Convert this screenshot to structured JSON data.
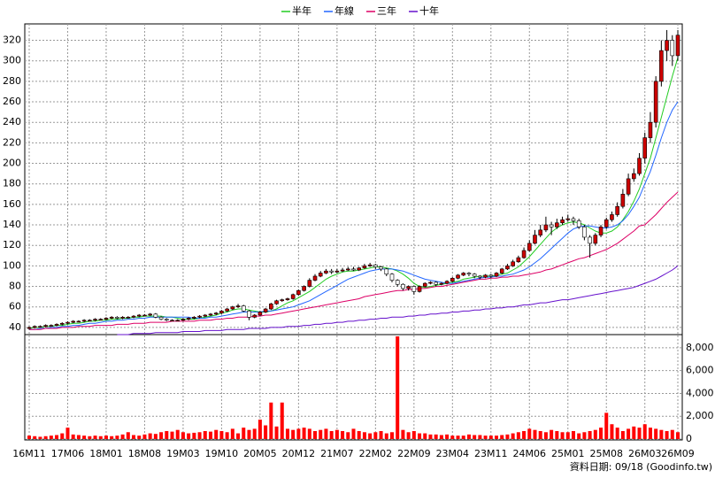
{
  "chart_data": {
    "type": "candlestick",
    "footer": "資料日期: 09/18  (Goodinfo.tw)",
    "grid": true,
    "up_color": "#cc0000",
    "down_color": "#ffffff",
    "categories": [
      "16M11",
      null,
      null,
      null,
      null,
      null,
      null,
      "17M06",
      null,
      null,
      null,
      null,
      null,
      null,
      "18M01",
      null,
      null,
      null,
      null,
      null,
      null,
      "18M08",
      null,
      null,
      null,
      null,
      null,
      null,
      "19M03",
      null,
      null,
      null,
      null,
      null,
      null,
      "19M10",
      null,
      null,
      null,
      null,
      null,
      null,
      "20M05",
      null,
      null,
      null,
      null,
      null,
      null,
      "20M12",
      null,
      null,
      null,
      null,
      null,
      null,
      "21M07",
      null,
      null,
      null,
      null,
      null,
      null,
      "22M02",
      null,
      null,
      null,
      null,
      null,
      null,
      "22M09",
      null,
      null,
      null,
      null,
      null,
      null,
      "23M04",
      null,
      null,
      null,
      null,
      null,
      null,
      "23M11",
      null,
      null,
      null,
      null,
      null,
      null,
      "24M06",
      null,
      null,
      null,
      null,
      null,
      null,
      "25M01",
      null,
      null,
      null,
      null,
      null,
      null,
      "25M08",
      null,
      null,
      null,
      null,
      null,
      null,
      "26M03",
      null,
      null,
      null,
      null,
      null,
      "26M09"
    ],
    "open": [
      39,
      40,
      41,
      41,
      42,
      42,
      43,
      44,
      45,
      46,
      46,
      47,
      47,
      48,
      48,
      49,
      50,
      49,
      50,
      50,
      51,
      52,
      52,
      53,
      50,
      48,
      47,
      47,
      47,
      48,
      49,
      50,
      51,
      52,
      53,
      54,
      56,
      58,
      60,
      61,
      56,
      50,
      52,
      55,
      58,
      63,
      66,
      67,
      68,
      72,
      76,
      80,
      86,
      90,
      93,
      95,
      94,
      95,
      96,
      97,
      96,
      98,
      100,
      101,
      99,
      97,
      92,
      86,
      82,
      78,
      80,
      75,
      80,
      83,
      84,
      82,
      83,
      85,
      88,
      91,
      93,
      92,
      90,
      89,
      91,
      90,
      93,
      97,
      100,
      104,
      108,
      115,
      122,
      130,
      135,
      140,
      138,
      142,
      145,
      146,
      144,
      138,
      128,
      122,
      130,
      138,
      145,
      150,
      158,
      170,
      185,
      190,
      205,
      225,
      240,
      280,
      310,
      320,
      305
    ],
    "high": [
      41,
      42,
      42,
      43,
      43,
      44,
      45,
      46,
      47,
      47,
      48,
      48,
      49,
      49,
      50,
      51,
      51,
      51,
      51,
      52,
      53,
      53,
      54,
      54,
      51,
      49,
      48,
      48,
      49,
      50,
      51,
      52,
      53,
      54,
      55,
      57,
      59,
      61,
      63,
      62,
      57,
      53,
      56,
      59,
      64,
      67,
      68,
      69,
      73,
      77,
      81,
      88,
      92,
      95,
      97,
      97,
      97,
      98,
      99,
      99,
      99,
      102,
      103,
      102,
      100,
      98,
      93,
      87,
      83,
      81,
      81,
      81,
      84,
      85,
      85,
      84,
      86,
      89,
      92,
      94,
      94,
      93,
      91,
      92,
      92,
      94,
      98,
      102,
      106,
      110,
      118,
      125,
      135,
      140,
      148,
      143,
      146,
      148,
      150,
      148,
      146,
      140,
      130,
      132,
      140,
      147,
      153,
      162,
      175,
      190,
      195,
      210,
      230,
      250,
      285,
      320,
      330,
      325,
      330
    ],
    "low": [
      38,
      39,
      40,
      40,
      41,
      41,
      42,
      43,
      44,
      45,
      45,
      46,
      46,
      47,
      47,
      48,
      48,
      48,
      49,
      49,
      50,
      51,
      51,
      49,
      47,
      46,
      46,
      46,
      46,
      47,
      48,
      49,
      50,
      51,
      52,
      53,
      55,
      57,
      59,
      55,
      47,
      49,
      51,
      54,
      57,
      62,
      65,
      66,
      67,
      71,
      75,
      79,
      85,
      89,
      92,
      92,
      93,
      94,
      95,
      95,
      95,
      97,
      99,
      97,
      95,
      90,
      84,
      80,
      76,
      76,
      72,
      74,
      79,
      82,
      80,
      81,
      82,
      84,
      87,
      90,
      90,
      88,
      87,
      88,
      88,
      89,
      92,
      96,
      99,
      103,
      107,
      114,
      121,
      128,
      133,
      130,
      136,
      140,
      143,
      140,
      136,
      125,
      108,
      120,
      128,
      136,
      143,
      148,
      156,
      168,
      182,
      188,
      200,
      220,
      235,
      275,
      300,
      295,
      300
    ],
    "close": [
      40,
      41,
      41,
      42,
      42,
      43,
      44,
      45,
      46,
      46,
      47,
      47,
      48,
      48,
      49,
      50,
      49,
      50,
      50,
      51,
      52,
      52,
      53,
      50,
      48,
      47,
      47,
      47,
      48,
      49,
      50,
      51,
      52,
      53,
      54,
      56,
      58,
      60,
      61,
      56,
      50,
      52,
      55,
      58,
      63,
      66,
      67,
      68,
      72,
      76,
      80,
      86,
      90,
      93,
      95,
      94,
      95,
      96,
      97,
      96,
      98,
      100,
      101,
      99,
      97,
      92,
      86,
      82,
      78,
      80,
      75,
      80,
      83,
      84,
      82,
      83,
      85,
      88,
      91,
      93,
      92,
      90,
      89,
      91,
      90,
      93,
      97,
      100,
      104,
      108,
      115,
      122,
      130,
      135,
      140,
      138,
      142,
      145,
      146,
      144,
      138,
      128,
      122,
      130,
      138,
      145,
      150,
      158,
      170,
      185,
      190,
      205,
      225,
      240,
      280,
      310,
      320,
      305,
      325
    ],
    "series": [
      {
        "name": "半年",
        "color": "#22cc22",
        "values": [
          39,
          40,
          40,
          41,
          41,
          42,
          42,
          43,
          44,
          44,
          45,
          46,
          46,
          47,
          47,
          48,
          48,
          49,
          49,
          50,
          50,
          51,
          51,
          51,
          51,
          50,
          50,
          49,
          48,
          48,
          48,
          49,
          50,
          51,
          52,
          54,
          55,
          57,
          58,
          58,
          57,
          56,
          55,
          55,
          56,
          58,
          61,
          64,
          66,
          69,
          72,
          75,
          79,
          83,
          87,
          90,
          92,
          94,
          95,
          95,
          96,
          97,
          98,
          99,
          99,
          98,
          97,
          95,
          92,
          88,
          83,
          80,
          79,
          80,
          81,
          82,
          83,
          84,
          85,
          87,
          88,
          89,
          90,
          90,
          90,
          91,
          92,
          93,
          96,
          99,
          104,
          109,
          115,
          121,
          127,
          133,
          137,
          140,
          142,
          143,
          142,
          140,
          137,
          134,
          132,
          132,
          134,
          138,
          145,
          153,
          163,
          175,
          190,
          205,
          225,
          245,
          265,
          285,
          303
        ]
      },
      {
        "name": "年線",
        "color": "#2266ff",
        "values": [
          38,
          38,
          39,
          39,
          40,
          40,
          41,
          41,
          42,
          42,
          43,
          44,
          44,
          45,
          46,
          46,
          47,
          47,
          48,
          48,
          49,
          49,
          50,
          50,
          50,
          50,
          50,
          50,
          50,
          50,
          49,
          49,
          49,
          50,
          50,
          51,
          52,
          53,
          54,
          55,
          55,
          55,
          55,
          56,
          56,
          57,
          58,
          59,
          60,
          62,
          64,
          66,
          69,
          72,
          75,
          78,
          81,
          84,
          87,
          89,
          91,
          93,
          95,
          96,
          97,
          97,
          97,
          96,
          95,
          93,
          91,
          89,
          87,
          86,
          85,
          84,
          83,
          83,
          84,
          85,
          86,
          87,
          88,
          89,
          89,
          90,
          90,
          91,
          92,
          94,
          96,
          99,
          103,
          107,
          112,
          117,
          122,
          127,
          132,
          136,
          138,
          139,
          139,
          138,
          137,
          137,
          138,
          140,
          144,
          150,
          158,
          167,
          180,
          192,
          208,
          225,
          240,
          252,
          260
        ]
      },
      {
        "name": "三年",
        "color": "#dd0066",
        "values": [
          38,
          38,
          38,
          39,
          39,
          39,
          40,
          40,
          40,
          41,
          41,
          41,
          42,
          42,
          42,
          42,
          43,
          43,
          43,
          44,
          44,
          44,
          45,
          45,
          45,
          45,
          46,
          46,
          46,
          46,
          46,
          47,
          47,
          47,
          48,
          48,
          49,
          49,
          50,
          50,
          50,
          51,
          51,
          52,
          52,
          53,
          54,
          55,
          56,
          57,
          58,
          59,
          60,
          61,
          62,
          63,
          64,
          65,
          66,
          67,
          68,
          70,
          71,
          72,
          73,
          74,
          75,
          76,
          76,
          77,
          77,
          78,
          78,
          79,
          80,
          80,
          81,
          82,
          83,
          84,
          85,
          86,
          87,
          87,
          88,
          88,
          89,
          89,
          90,
          90,
          91,
          92,
          93,
          94,
          96,
          97,
          99,
          101,
          103,
          105,
          107,
          108,
          110,
          112,
          114,
          116,
          119,
          122,
          126,
          130,
          134,
          139,
          140,
          145,
          150,
          156,
          162,
          167,
          172
        ]
      },
      {
        "name": "十年",
        "color": "#6611cc",
        "values": [
          null,
          null,
          null,
          null,
          null,
          null,
          null,
          null,
          null,
          null,
          null,
          null,
          null,
          null,
          null,
          null,
          33,
          33,
          33,
          34,
          34,
          34,
          34,
          35,
          35,
          35,
          35,
          35,
          36,
          36,
          36,
          36,
          37,
          37,
          37,
          37,
          38,
          38,
          38,
          38,
          39,
          39,
          39,
          39,
          40,
          40,
          40,
          41,
          41,
          41,
          42,
          42,
          43,
          43,
          44,
          44,
          45,
          45,
          46,
          46,
          47,
          47,
          48,
          48,
          49,
          49,
          50,
          50,
          50,
          51,
          51,
          52,
          52,
          53,
          53,
          54,
          54,
          55,
          55,
          56,
          56,
          57,
          57,
          58,
          58,
          59,
          59,
          60,
          60,
          61,
          62,
          62,
          63,
          64,
          64,
          65,
          66,
          67,
          67,
          68,
          69,
          70,
          71,
          72,
          73,
          74,
          75,
          76,
          77,
          78,
          79,
          81,
          83,
          85,
          87,
          90,
          93,
          96,
          100
        ]
      }
    ],
    "ylim": [
      33,
      336
    ],
    "yticks": [
      40,
      60,
      80,
      100,
      120,
      140,
      160,
      180,
      200,
      220,
      240,
      260,
      280,
      300,
      320
    ],
    "volume": {
      "color": "#ff0000",
      "values": [
        300,
        250,
        200,
        250,
        300,
        350,
        500,
        1000,
        400,
        350,
        300,
        250,
        300,
        250,
        300,
        250,
        300,
        400,
        600,
        350,
        300,
        400,
        500,
        450,
        600,
        700,
        650,
        800,
        600,
        500,
        550,
        600,
        700,
        650,
        800,
        700,
        600,
        900,
        500,
        1000,
        800,
        900,
        1700,
        1200,
        3200,
        1100,
        3200,
        900,
        800,
        900,
        1000,
        900,
        700,
        800,
        900,
        700,
        800,
        700,
        600,
        900,
        700,
        600,
        500,
        600,
        700,
        500,
        600,
        9000,
        800,
        600,
        700,
        500,
        500,
        400,
        400,
        350,
        400,
        300,
        300,
        300,
        400,
        350,
        350,
        300,
        300,
        300,
        350,
        400,
        500,
        600,
        700,
        900,
        800,
        700,
        600,
        800,
        700,
        600,
        600,
        700,
        500,
        600,
        700,
        800,
        1000,
        2300,
        1300,
        1000,
        700,
        900,
        1100,
        1000,
        1300,
        1000,
        900,
        800,
        700,
        800,
        600
      ],
      "ylim": [
        0,
        9000
      ],
      "yticks": [
        0,
        {
          "value": 2000,
          "label": "2,000"
        },
        {
          "value": 4000,
          "label": "4,000"
        },
        {
          "value": 6000,
          "label": "6,000"
        },
        {
          "value": 8000,
          "label": "8,000"
        }
      ]
    }
  }
}
